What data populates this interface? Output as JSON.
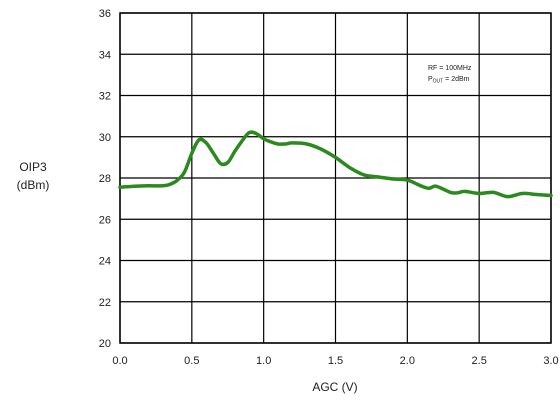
{
  "chart_data": {
    "type": "line",
    "title": "",
    "xlabel": "AGC (V)",
    "ylabel": [
      "OIP3",
      "(dBm)"
    ],
    "xlim": [
      0.0,
      3.0
    ],
    "ylim": [
      20,
      36
    ],
    "x_ticks": [
      "0.0",
      "0.5",
      "1.0",
      "1.5",
      "2.0",
      "2.5",
      "3.0"
    ],
    "y_ticks": [
      "20",
      "22",
      "24",
      "26",
      "28",
      "30",
      "32",
      "34",
      "36"
    ],
    "grid": true,
    "annotation": {
      "line1": "RF = 100MHz",
      "line2_main": "P",
      "line2_sub": "OUT",
      "line2_rest": " = 2dBm"
    },
    "series": [
      {
        "color": "#2a8a1e",
        "x": [
          0.0,
          0.1,
          0.2,
          0.3,
          0.35,
          0.4,
          0.45,
          0.5,
          0.55,
          0.6,
          0.65,
          0.7,
          0.75,
          0.8,
          0.85,
          0.9,
          0.95,
          1.0,
          1.05,
          1.1,
          1.15,
          1.2,
          1.3,
          1.4,
          1.5,
          1.6,
          1.7,
          1.8,
          1.9,
          2.0,
          2.1,
          2.15,
          2.2,
          2.3,
          2.35,
          2.4,
          2.5,
          2.6,
          2.7,
          2.8,
          2.9,
          3.0
        ],
        "y": [
          27.55,
          27.6,
          27.62,
          27.62,
          27.7,
          27.9,
          28.3,
          29.2,
          29.85,
          29.7,
          29.2,
          28.7,
          28.75,
          29.3,
          29.8,
          30.2,
          30.15,
          29.9,
          29.75,
          29.65,
          29.65,
          29.7,
          29.65,
          29.4,
          29.0,
          28.5,
          28.15,
          28.05,
          27.95,
          27.9,
          27.6,
          27.5,
          27.6,
          27.3,
          27.28,
          27.35,
          27.25,
          27.3,
          27.1,
          27.25,
          27.2,
          27.15
        ]
      }
    ]
  }
}
